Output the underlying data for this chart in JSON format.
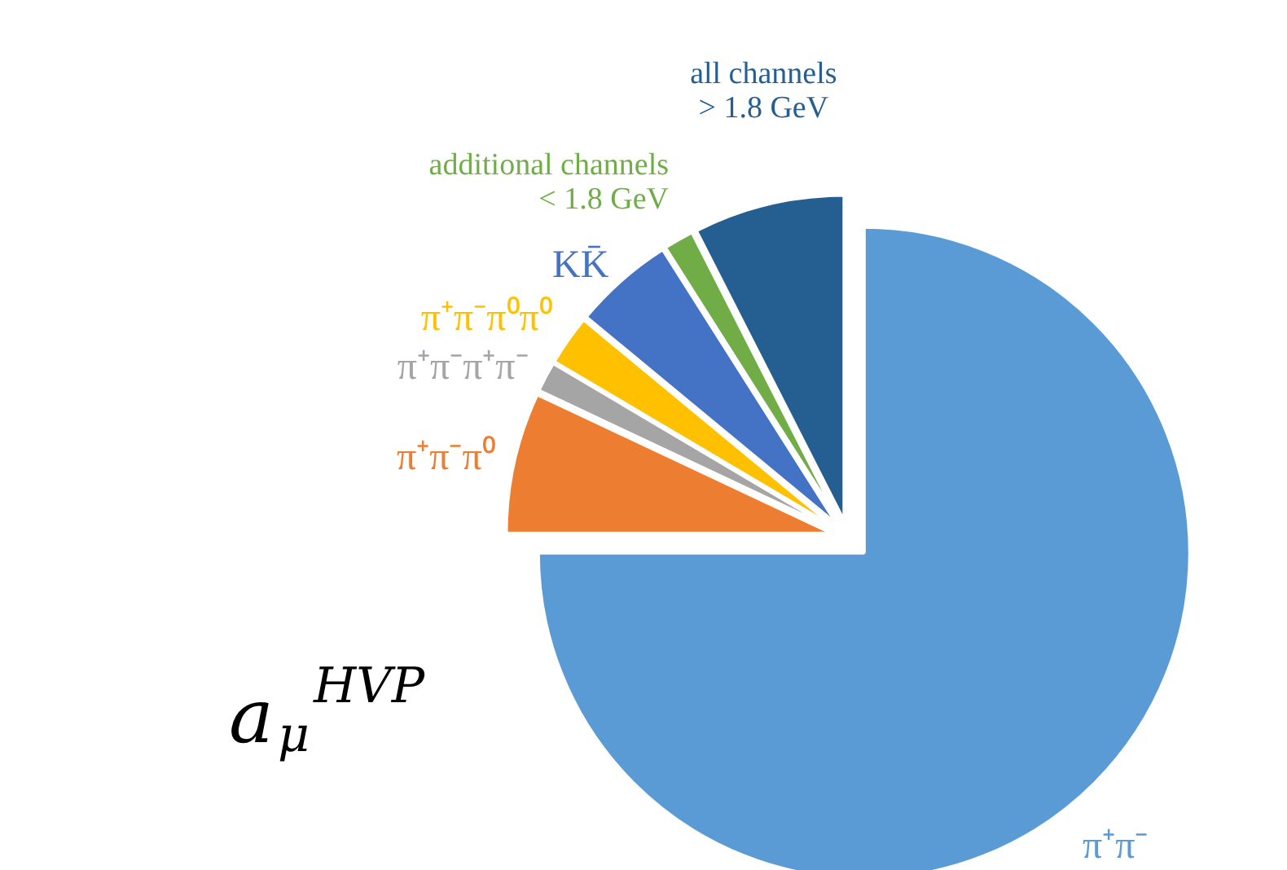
{
  "chart_data": {
    "type": "pie",
    "categories": [
      "π⁺π⁻",
      "π⁺π⁻π⁰",
      "π⁺π⁻π⁺π⁻",
      "π⁺π⁻π⁰π⁰",
      "KK̄",
      "additional channels\n< 1.8 GeV",
      "all channels\n> 1.8 GeV"
    ],
    "values": [
      75,
      7,
      1.5,
      2.5,
      5,
      1.5,
      7.5
    ],
    "colors": [
      "#5b9bd5",
      "#ed7d31",
      "#a5a5a5",
      "#ffc000",
      "#4472c4",
      "#70ad47",
      "#255e91"
    ],
    "annotations": [
      "a$_{μ}$$^{HVP}$"
    ]
  }
}
